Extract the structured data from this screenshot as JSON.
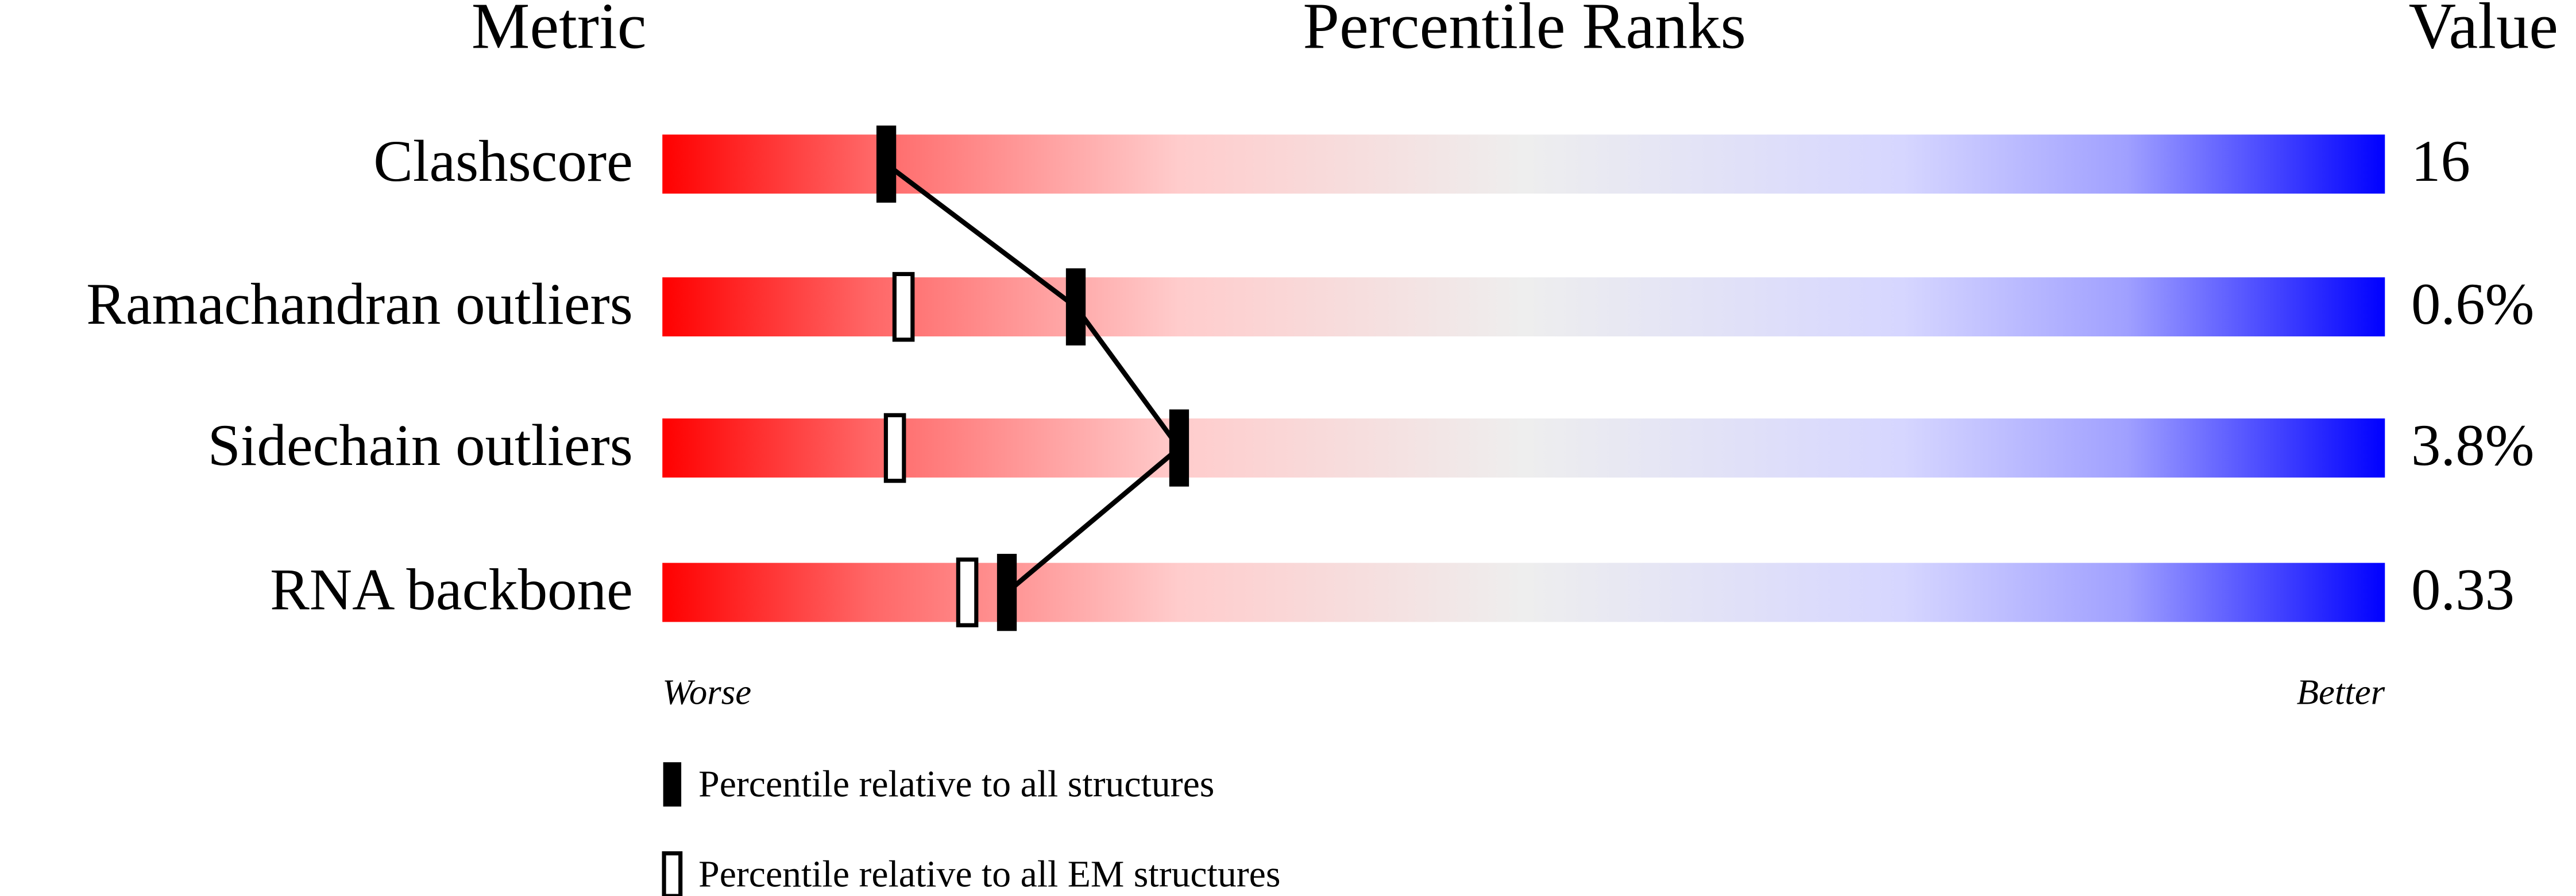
{
  "chart_data": {
    "type": "percentile",
    "headers": [
      "Metric",
      "Percentile Ranks",
      "Value"
    ],
    "categories": [
      "Clashscore",
      "Ramachandran outliers",
      "Sidechain outliers",
      "RNA backbone"
    ],
    "values": [
      16,
      0.6,
      3.8,
      0.33
    ],
    "value_labels": [
      "16",
      "0.6%",
      "3.8%",
      "0.33"
    ],
    "series": [
      {
        "name": "Percentile relative to all structures",
        "color": "#000000",
        "values": [
          13,
          24,
          30,
          20
        ]
      },
      {
        "name": "Percentile relative to all EM structures",
        "color": "#000000",
        "values": [
          null,
          14,
          13.5,
          17.7
        ]
      }
    ],
    "xlim": [
      0,
      100
    ],
    "scale_labels": [
      "Worse",
      "Better"
    ]
  }
}
